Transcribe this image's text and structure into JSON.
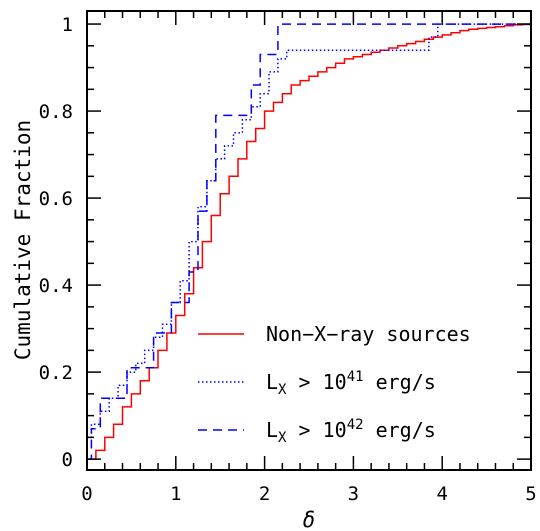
{
  "chart_data": {
    "type": "line",
    "step": true,
    "xlabel": "δ",
    "ylabel": "Cumulative Fraction",
    "xlim": [
      0,
      5
    ],
    "ylim": [
      -0.025,
      1.03
    ],
    "xticks": [
      0,
      1,
      2,
      3,
      4,
      5
    ],
    "xtick_labels": [
      "0",
      "1",
      "2",
      "3",
      "4",
      "5"
    ],
    "yticks": [
      0,
      0.2,
      0.4,
      0.6,
      0.8,
      1.0
    ],
    "ytick_labels": [
      "0",
      "0.2",
      "0.4",
      "0.6",
      "0.8",
      "1"
    ],
    "grid": false,
    "legend_position": "lower-right",
    "series": [
      {
        "name": "Non-X-ray sources",
        "color": "#ff0000",
        "dash": "solid",
        "x": [
          0,
          0.1,
          0.2,
          0.3,
          0.4,
          0.5,
          0.6,
          0.7,
          0.8,
          0.9,
          1.0,
          1.1,
          1.2,
          1.3,
          1.4,
          1.5,
          1.6,
          1.7,
          1.8,
          1.9,
          2.0,
          2.1,
          2.2,
          2.3,
          2.4,
          2.5,
          2.6,
          2.7,
          2.8,
          2.9,
          3.0,
          3.1,
          3.2,
          3.3,
          3.4,
          3.5,
          3.6,
          3.7,
          3.8,
          3.9,
          4.0,
          4.1,
          4.2,
          4.3,
          4.4,
          4.5,
          4.6,
          4.7,
          4.8,
          4.9,
          5.0
        ],
        "y": [
          0.0,
          0.02,
          0.05,
          0.08,
          0.12,
          0.15,
          0.18,
          0.21,
          0.25,
          0.29,
          0.33,
          0.38,
          0.44,
          0.5,
          0.56,
          0.61,
          0.65,
          0.69,
          0.73,
          0.76,
          0.8,
          0.82,
          0.84,
          0.86,
          0.87,
          0.88,
          0.89,
          0.9,
          0.91,
          0.92,
          0.925,
          0.93,
          0.935,
          0.94,
          0.945,
          0.95,
          0.955,
          0.96,
          0.965,
          0.97,
          0.975,
          0.98,
          0.985,
          0.988,
          0.99,
          0.992,
          0.994,
          0.996,
          0.998,
          0.999,
          1.0
        ]
      },
      {
        "name": "L_X > 10^41 erg/s",
        "color": "#0000ff",
        "dash": "dotted",
        "x": [
          0,
          0.05,
          0.15,
          0.25,
          0.35,
          0.45,
          0.55,
          0.65,
          0.75,
          0.85,
          0.95,
          1.05,
          1.15,
          1.25,
          1.35,
          1.45,
          1.55,
          1.65,
          1.75,
          1.85,
          1.95,
          2.05,
          2.15,
          2.25,
          2.35,
          3.85,
          3.95,
          5.0
        ],
        "y": [
          0.05,
          0.08,
          0.11,
          0.14,
          0.17,
          0.2,
          0.22,
          0.25,
          0.28,
          0.31,
          0.36,
          0.41,
          0.5,
          0.58,
          0.64,
          0.69,
          0.72,
          0.75,
          0.78,
          0.81,
          0.84,
          0.89,
          0.92,
          0.94,
          0.94,
          0.97,
          1.0,
          1.0
        ]
      },
      {
        "name": "L_X > 10^42 erg/s",
        "color": "#0000ff",
        "dash": "dashed",
        "x": [
          0,
          0.05,
          0.15,
          0.25,
          0.45,
          0.65,
          0.75,
          0.85,
          0.95,
          1.05,
          1.15,
          1.25,
          1.35,
          1.45,
          1.55,
          1.65,
          1.75,
          1.85,
          1.95,
          2.05,
          2.15,
          5.0
        ],
        "y": [
          0.0,
          0.07,
          0.14,
          0.14,
          0.21,
          0.21,
          0.29,
          0.29,
          0.36,
          0.36,
          0.43,
          0.57,
          0.64,
          0.79,
          0.79,
          0.79,
          0.79,
          0.86,
          0.93,
          0.93,
          1.0,
          1.0
        ]
      }
    ]
  },
  "legend": {
    "entries": [
      {
        "label": "Non−X−ray sources",
        "color": "#ff0000",
        "dash": "solid"
      },
      {
        "label_main": "L",
        "label_sub": "X",
        "label_op": " > 10",
        "label_sup": "41",
        "label_unit": " erg/s",
        "color": "#0000ff",
        "dash": "dotted"
      },
      {
        "label_main": "L",
        "label_sub": "X",
        "label_op": " > 10",
        "label_sup": "42",
        "label_unit": " erg/s",
        "color": "#0000ff",
        "dash": "dashed"
      }
    ]
  }
}
